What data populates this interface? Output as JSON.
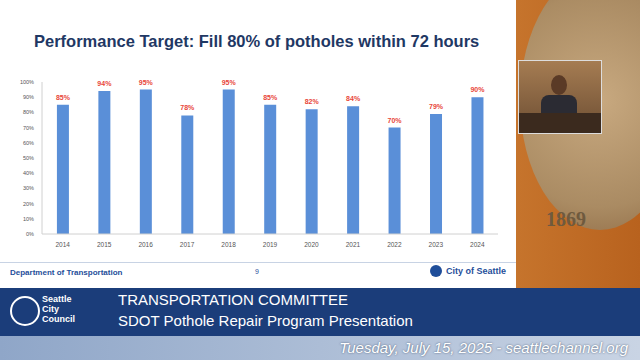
{
  "chart_data": {
    "type": "bar",
    "title": "Performance Target: Fill 80% of potholes within 72 hours",
    "categories": [
      "2014",
      "2015",
      "2016",
      "2017",
      "2018",
      "2019",
      "2020",
      "2021",
      "2022",
      "2023",
      "2024"
    ],
    "values": [
      85,
      94,
      95,
      78,
      95,
      85,
      82,
      84,
      70,
      79,
      90
    ],
    "value_labels": [
      "85%",
      "94%",
      "95%",
      "78%",
      "95%",
      "85%",
      "82%",
      "84%",
      "70%",
      "79%",
      "90%"
    ],
    "color": "#5a8fd8",
    "ylim": [
      0,
      100
    ],
    "yticks": [
      {
        "value": 0,
        "label": "0%"
      },
      {
        "value": 10,
        "label": "10%"
      },
      {
        "value": 20,
        "label": "20%"
      },
      {
        "value": 30,
        "label": "30%"
      },
      {
        "value": 40,
        "label": "40%"
      },
      {
        "value": 50,
        "label": "50%"
      },
      {
        "value": 60,
        "label": "60%"
      },
      {
        "value": 70,
        "label": "70%"
      },
      {
        "value": 80,
        "label": "80%"
      },
      {
        "value": 90,
        "label": "90%"
      },
      {
        "value": 100,
        "label": "100%"
      }
    ],
    "grid": false,
    "data_labels": true
  },
  "slide": {
    "footer_left": "Department of Transportation",
    "page": "9",
    "footer_right": "City of Seattle"
  },
  "seal": "1869",
  "broadcast": {
    "logo": [
      "Seattle",
      "City",
      "Council"
    ],
    "line1": "TRANSPORTATION COMMITTEE",
    "line2": "SDOT Pothole Repair Program Presentation",
    "line3": "Tuesday, July 15, 2025 - seattlechannel.org"
  }
}
